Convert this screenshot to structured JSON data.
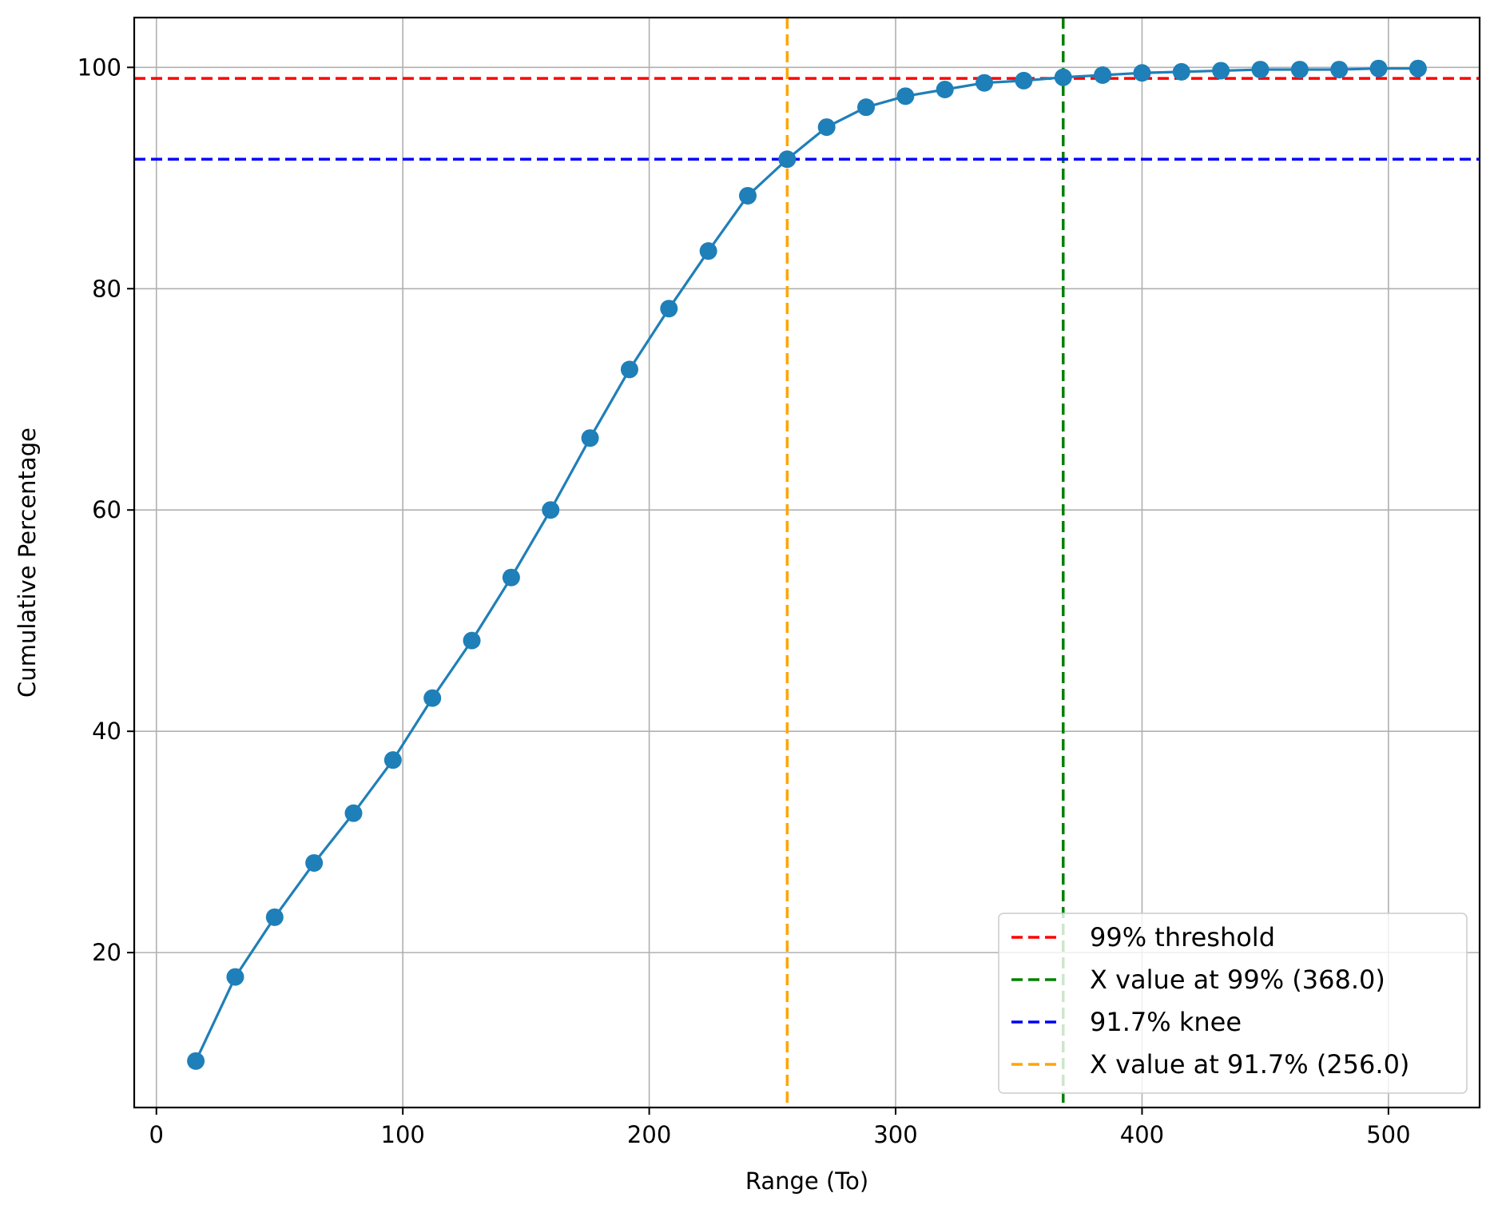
{
  "chart_data": {
    "type": "line",
    "xlabel": "Range (To)",
    "ylabel": "Cumulative Percentage",
    "xlim": [
      -9,
      537
    ],
    "ylim": [
      6,
      104.5
    ],
    "x_ticks": [
      0,
      100,
      200,
      300,
      400,
      500
    ],
    "y_ticks": [
      20,
      40,
      60,
      80,
      100
    ],
    "grid": true,
    "legend_position": "lower right",
    "series": [
      {
        "color": "#1f7fb8",
        "marker": "circle",
        "x": [
          16,
          32,
          48,
          64,
          80,
          96,
          112,
          128,
          144,
          160,
          176,
          192,
          208,
          224,
          240,
          256,
          272,
          288,
          304,
          320,
          336,
          352,
          368,
          384,
          400,
          416,
          432,
          448,
          464,
          480,
          496,
          512
        ],
        "y": [
          10.2,
          17.8,
          23.2,
          28.1,
          32.6,
          37.4,
          43.0,
          48.2,
          53.9,
          60.0,
          66.5,
          72.7,
          78.2,
          83.4,
          88.4,
          91.7,
          94.6,
          96.4,
          97.4,
          98.0,
          98.6,
          98.8,
          99.1,
          99.3,
          99.5,
          99.6,
          99.7,
          99.8,
          99.8,
          99.8,
          99.9,
          99.9
        ]
      }
    ],
    "reference_lines": [
      {
        "orientation": "horizontal",
        "value": 99.0,
        "color": "#ff0000",
        "label": "99% threshold"
      },
      {
        "orientation": "vertical",
        "value": 368.0,
        "color": "#008000",
        "label": "X value at 99% (368.0)"
      },
      {
        "orientation": "horizontal",
        "value": 91.7,
        "color": "#0000ff",
        "label": "91.7% knee"
      },
      {
        "orientation": "vertical",
        "value": 256.0,
        "color": "#ffa500",
        "label": "X value at 91.7% (256.0)"
      }
    ]
  }
}
